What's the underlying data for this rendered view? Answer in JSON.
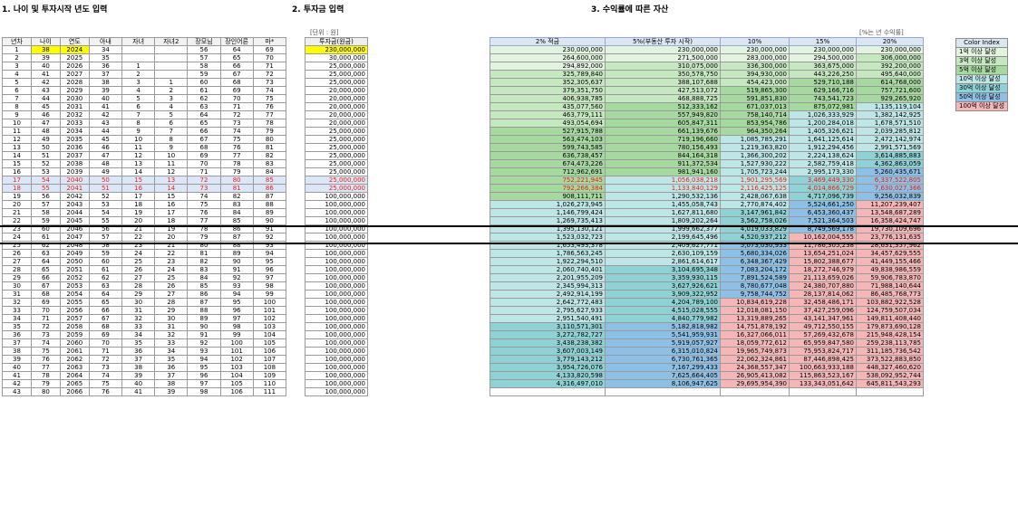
{
  "sections": {
    "s1": "1. 나이 및 투자시작 년도 입력",
    "s2": "2. 투자금 입력",
    "s3": "3. 수익률에 따른 자산"
  },
  "unit_invest": "[단위 : 원]",
  "unit_rate": "[%는 년 수익률]",
  "colors": {
    "yellow": "#ffff00",
    "green_light": "#c6efce",
    "green_mid": "#a9d9a0",
    "green_dark": "#7cc47f",
    "teal": "#7fd3d6",
    "blue": "#8ec0e6",
    "pink": "#f4b6b6"
  },
  "t1_headers": [
    "년차",
    "나이",
    "연도",
    "아내",
    "자녀",
    "자녀2",
    "장모님",
    "장인어른",
    "마*"
  ],
  "t1_rows": [
    [
      "1",
      "38",
      "2024",
      "34",
      "",
      "",
      "56",
      "64",
      "69"
    ],
    [
      "2",
      "39",
      "2025",
      "35",
      "",
      "",
      "57",
      "65",
      "70"
    ],
    [
      "3",
      "40",
      "2026",
      "36",
      "1",
      "",
      "58",
      "66",
      "71"
    ],
    [
      "4",
      "41",
      "2027",
      "37",
      "2",
      "",
      "59",
      "67",
      "72"
    ],
    [
      "5",
      "42",
      "2028",
      "38",
      "3",
      "1",
      "60",
      "68",
      "73"
    ],
    [
      "6",
      "43",
      "2029",
      "39",
      "4",
      "2",
      "61",
      "69",
      "74"
    ],
    [
      "7",
      "44",
      "2030",
      "40",
      "5",
      "3",
      "62",
      "70",
      "75"
    ],
    [
      "8",
      "45",
      "2031",
      "41",
      "6",
      "4",
      "63",
      "71",
      "76"
    ],
    [
      "9",
      "46",
      "2032",
      "42",
      "7",
      "5",
      "64",
      "72",
      "77"
    ],
    [
      "10",
      "47",
      "2033",
      "43",
      "8",
      "6",
      "65",
      "73",
      "78"
    ],
    [
      "11",
      "48",
      "2034",
      "44",
      "9",
      "7",
      "66",
      "74",
      "79"
    ],
    [
      "12",
      "49",
      "2035",
      "45",
      "10",
      "8",
      "67",
      "75",
      "80"
    ],
    [
      "13",
      "50",
      "2036",
      "46",
      "11",
      "9",
      "68",
      "76",
      "81"
    ],
    [
      "14",
      "51",
      "2037",
      "47",
      "12",
      "10",
      "69",
      "77",
      "82"
    ],
    [
      "15",
      "52",
      "2038",
      "48",
      "13",
      "11",
      "70",
      "78",
      "83"
    ],
    [
      "16",
      "53",
      "2039",
      "49",
      "14",
      "12",
      "71",
      "79",
      "84"
    ],
    [
      "17",
      "54",
      "2040",
      "50",
      "15",
      "13",
      "72",
      "80",
      "85"
    ],
    [
      "18",
      "55",
      "2041",
      "51",
      "16",
      "14",
      "73",
      "81",
      "86"
    ],
    [
      "19",
      "56",
      "2042",
      "52",
      "17",
      "15",
      "74",
      "82",
      "87"
    ],
    [
      "20",
      "57",
      "2043",
      "53",
      "18",
      "16",
      "75",
      "83",
      "88"
    ],
    [
      "21",
      "58",
      "2044",
      "54",
      "19",
      "17",
      "76",
      "84",
      "89"
    ],
    [
      "22",
      "59",
      "2045",
      "55",
      "20",
      "18",
      "77",
      "85",
      "90"
    ],
    [
      "23",
      "60",
      "2046",
      "56",
      "21",
      "19",
      "78",
      "86",
      "91"
    ],
    [
      "24",
      "61",
      "2047",
      "57",
      "22",
      "20",
      "79",
      "87",
      "92"
    ],
    [
      "25",
      "62",
      "2048",
      "58",
      "23",
      "21",
      "80",
      "88",
      "93"
    ],
    [
      "26",
      "63",
      "2049",
      "59",
      "24",
      "22",
      "81",
      "89",
      "94"
    ],
    [
      "27",
      "64",
      "2050",
      "60",
      "25",
      "23",
      "82",
      "90",
      "95"
    ],
    [
      "28",
      "65",
      "2051",
      "61",
      "26",
      "24",
      "83",
      "91",
      "96"
    ],
    [
      "29",
      "66",
      "2052",
      "62",
      "27",
      "25",
      "84",
      "92",
      "97"
    ],
    [
      "30",
      "67",
      "2053",
      "63",
      "28",
      "26",
      "85",
      "93",
      "98"
    ],
    [
      "31",
      "68",
      "2054",
      "64",
      "29",
      "27",
      "86",
      "94",
      "99"
    ],
    [
      "32",
      "69",
      "2055",
      "65",
      "30",
      "28",
      "87",
      "95",
      "100"
    ],
    [
      "33",
      "70",
      "2056",
      "66",
      "31",
      "29",
      "88",
      "96",
      "101"
    ],
    [
      "34",
      "71",
      "2057",
      "67",
      "32",
      "30",
      "89",
      "97",
      "102"
    ],
    [
      "35",
      "72",
      "2058",
      "68",
      "33",
      "31",
      "90",
      "98",
      "103"
    ],
    [
      "36",
      "73",
      "2059",
      "69",
      "34",
      "32",
      "91",
      "99",
      "104"
    ],
    [
      "37",
      "74",
      "2060",
      "70",
      "35",
      "33",
      "92",
      "100",
      "105"
    ],
    [
      "38",
      "75",
      "2061",
      "71",
      "36",
      "34",
      "93",
      "101",
      "106"
    ],
    [
      "39",
      "76",
      "2062",
      "72",
      "37",
      "35",
      "94",
      "102",
      "107"
    ],
    [
      "40",
      "77",
      "2063",
      "73",
      "38",
      "36",
      "95",
      "103",
      "108"
    ],
    [
      "41",
      "78",
      "2064",
      "74",
      "39",
      "37",
      "96",
      "104",
      "109"
    ],
    [
      "42",
      "79",
      "2065",
      "75",
      "40",
      "38",
      "97",
      "105",
      "110"
    ],
    [
      "43",
      "80",
      "2066",
      "76",
      "41",
      "39",
      "98",
      "106",
      "111"
    ]
  ],
  "t2_header": "투자금(원금)",
  "t2_rows": [
    "230,000,000",
    "30,000,000",
    "25,000,000",
    "25,000,000",
    "25,000,000",
    "20,000,000",
    "20,000,000",
    "20,000,000",
    "20,000,000",
    "20,000,000",
    "25,000,000",
    "25,000,000",
    "25,000,000",
    "25,000,000",
    "25,000,000",
    "25,000,000",
    "25,000,000",
    "25,000,000",
    "100,000,000",
    "100,000,000",
    "100,000,000",
    "100,000,000",
    "100,000,000",
    "100,000,000",
    "100,000,000",
    "100,000,000",
    "100,000,000",
    "100,000,000",
    "100,000,000",
    "100,000,000",
    "100,000,000",
    "100,000,000",
    "100,000,000",
    "100,000,000",
    "100,000,000",
    "100,000,000",
    "100,000,000",
    "100,000,000",
    "100,000,000",
    "100,000,000",
    "100,000,000",
    "100,000,000",
    "100,000,000"
  ],
  "t3_headers": [
    "2% 적금",
    "5%(부동산 투자 시작)",
    "10%",
    "15%",
    "20%"
  ],
  "t3_rows": [
    [
      "230,000,000",
      "230,000,000",
      "230,000,000",
      "230,000,000",
      "230,000,000"
    ],
    [
      "264,600,000",
      "271,500,000",
      "283,000,000",
      "294,500,000",
      "306,000,000"
    ],
    [
      "294,892,000",
      "310,075,000",
      "336,300,000",
      "363,675,000",
      "392,200,000"
    ],
    [
      "325,789,840",
      "350,578,750",
      "394,930,000",
      "443,226,250",
      "495,640,000"
    ],
    [
      "352,305,637",
      "388,107,688",
      "454,423,000",
      "529,710,188",
      "614,768,000"
    ],
    [
      "379,351,750",
      "427,513,072",
      "519,865,300",
      "629,166,716",
      "757,721,600"
    ],
    [
      "406,938,785",
      "468,888,725",
      "591,851,830",
      "743,541,723",
      "929,265,920"
    ],
    [
      "435,077,560",
      "512,333,162",
      "671,037,013",
      "875,072,981",
      "1,135,119,104"
    ],
    [
      "463,779,111",
      "557,949,820",
      "758,140,714",
      "1,026,333,929",
      "1,382,142,925"
    ],
    [
      "493,054,694",
      "605,847,311",
      "853,954,786",
      "1,200,284,018",
      "1,678,571,510"
    ],
    [
      "527,915,788",
      "661,139,676",
      "964,350,264",
      "1,405,326,621",
      "2,039,285,812"
    ],
    [
      "563,474,103",
      "719,196,660",
      "1,085,785,291",
      "1,641,125,614",
      "2,472,142,974"
    ],
    [
      "599,743,585",
      "780,156,493",
      "1,219,363,820",
      "1,912,294,456",
      "2,991,571,569"
    ],
    [
      "636,738,457",
      "844,164,318",
      "1,366,300,202",
      "2,224,138,624",
      "3,614,885,883"
    ],
    [
      "674,473,226",
      "911,372,534",
      "1,527,930,222",
      "2,582,759,418",
      "4,362,863,059"
    ],
    [
      "712,962,691",
      "981,941,160",
      "1,705,723,244",
      "2,995,173,330",
      "5,260,435,671"
    ],
    [
      "752,221,945",
      "1,056,038,218",
      "1,901,295,569",
      "3,469,449,330",
      "6,337,522,805"
    ],
    [
      "792,266,384",
      "1,133,840,129",
      "2,116,425,125",
      "4,014,866,729",
      "7,630,027,366"
    ],
    [
      "908,111,711",
      "1,290,532,136",
      "2,428,067,638",
      "4,717,096,739",
      "9,256,032,839"
    ],
    [
      "1,026,273,945",
      "1,455,058,743",
      "2,770,874,402",
      "5,524,661,250",
      "11,207,239,407"
    ],
    [
      "1,146,799,424",
      "1,627,811,680",
      "3,147,961,842",
      "6,453,360,437",
      "13,548,687,289"
    ],
    [
      "1,269,735,413",
      "1,809,202,264",
      "3,562,758,026",
      "7,521,364,503",
      "16,358,424,747"
    ],
    [
      "1,395,130,121",
      "1,999,662,377",
      "4,019,033,829",
      "8,749,569,178",
      "19,730,109,696"
    ],
    [
      "1,523,032,723",
      "2,199,645,496",
      "4,520,937,212",
      "10,162,004,555",
      "23,776,131,635"
    ],
    [
      "1,653,493,378",
      "2,409,627,771",
      "5,073,030,933",
      "11,786,305,238",
      "28,631,357,962"
    ],
    [
      "1,786,563,245",
      "2,630,109,159",
      "5,680,334,026",
      "13,654,251,024",
      "34,457,629,555"
    ],
    [
      "1,922,294,510",
      "2,861,614,617",
      "6,348,367,429",
      "15,802,388,677",
      "41,449,155,466"
    ],
    [
      "2,060,740,401",
      "3,104,695,348",
      "7,083,204,172",
      "18,272,746,979",
      "49,838,986,559"
    ],
    [
      "2,201,955,209",
      "3,359,930,115",
      "7,891,524,589",
      "21,113,659,026",
      "59,906,783,870"
    ],
    [
      "2,345,994,313",
      "3,627,926,621",
      "8,780,677,048",
      "24,380,707,880",
      "71,988,140,644"
    ],
    [
      "2,492,914,199",
      "3,909,322,952",
      "9,758,744,752",
      "28,137,814,062",
      "86,485,768,773"
    ],
    [
      "2,642,772,483",
      "4,204,789,100",
      "10,834,619,228",
      "32,458,486,171",
      "103,882,922,528"
    ],
    [
      "2,795,627,933",
      "4,515,028,555",
      "12,018,081,150",
      "37,427,259,096",
      "124,759,507,034"
    ],
    [
      "2,951,540,491",
      "4,840,779,982",
      "13,319,889,265",
      "43,141,347,961",
      "149,811,408,440"
    ],
    [
      "3,110,571,301",
      "5,182,818,982",
      "14,751,878,192",
      "49,712,550,155",
      "179,873,690,128"
    ],
    [
      "3,272,782,727",
      "5,541,959,931",
      "16,327,066,011",
      "57,269,432,678",
      "215,948,428,154"
    ],
    [
      "3,438,238,382",
      "5,919,057,927",
      "18,059,772,612",
      "65,959,847,580",
      "259,238,113,785"
    ],
    [
      "3,607,003,149",
      "6,315,010,824",
      "19,965,749,873",
      "75,953,824,717",
      "311,185,736,542"
    ],
    [
      "3,779,143,212",
      "6,730,761,365",
      "22,062,324,861",
      "87,446,898,425",
      "373,522,883,850"
    ],
    [
      "3,954,726,076",
      "7,167,299,433",
      "24,368,557,347",
      "100,663,933,188",
      "448,327,460,620"
    ],
    [
      "4,133,820,598",
      "7,625,664,405",
      "26,905,413,082",
      "115,863,523,167",
      "538,092,952,744"
    ],
    [
      "4,316,497,010",
      "8,106,947,625",
      "29,695,954,390",
      "133,343,051,642",
      "645,811,543,293"
    ],
    [
      "",
      "",
      "",
      "",
      ""
    ]
  ],
  "legend": {
    "header": "Color Index",
    "items": [
      {
        "label": "1억 이상 달성",
        "color": "#e2f3df"
      },
      {
        "label": "3억 이상 달성",
        "color": "#c6e8c0"
      },
      {
        "label": "5억 이상 달성",
        "color": "#a6d99f"
      },
      {
        "label": "10억 이상 달성",
        "color": "#bfe6e6"
      },
      {
        "label": "30억 이상 달성",
        "color": "#8fd2d6"
      },
      {
        "label": "50억 이상 달성",
        "color": "#8ec0e6"
      },
      {
        "label": "100억 이상 달성",
        "color": "#f4b6b6"
      }
    ]
  }
}
